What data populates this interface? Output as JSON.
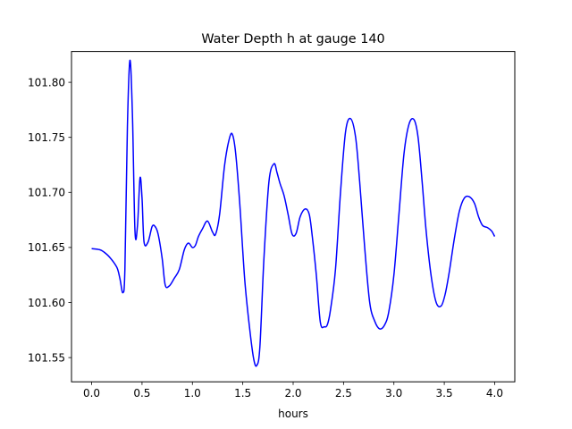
{
  "chart_data": {
    "type": "line",
    "title": "Water Depth h at gauge 140",
    "xlabel": "hours",
    "ylabel": "",
    "xlim": [
      -0.2,
      4.2
    ],
    "ylim": [
      101.528,
      101.828
    ],
    "xticks": [
      0.0,
      0.5,
      1.0,
      1.5,
      2.0,
      2.5,
      3.0,
      3.5,
      4.0
    ],
    "xtick_labels": [
      "0.0",
      "0.5",
      "1.0",
      "1.5",
      "2.0",
      "2.5",
      "3.0",
      "3.5",
      "4.0"
    ],
    "yticks": [
      101.55,
      101.6,
      101.65,
      101.7,
      101.75,
      101.8
    ],
    "ytick_labels": [
      "101.55",
      "101.60",
      "101.65",
      "101.70",
      "101.75",
      "101.80"
    ],
    "grid": false,
    "series": [
      {
        "color": "#0000ff",
        "x": [
          0.0,
          0.08,
          0.12,
          0.18,
          0.25,
          0.28,
          0.31,
          0.33,
          0.355,
          0.38,
          0.405,
          0.43,
          0.455,
          0.48,
          0.5,
          0.52,
          0.56,
          0.6,
          0.63,
          0.66,
          0.7,
          0.73,
          0.77,
          0.82,
          0.87,
          0.92,
          0.96,
          1.0,
          1.03,
          1.06,
          1.1,
          1.15,
          1.2,
          1.23,
          1.27,
          1.32,
          1.37,
          1.4,
          1.43,
          1.47,
          1.52,
          1.57,
          1.61,
          1.64,
          1.67,
          1.71,
          1.76,
          1.81,
          1.84,
          1.87,
          1.91,
          1.95,
          1.99,
          2.03,
          2.07,
          2.12,
          2.16,
          2.19,
          2.23,
          2.27,
          2.31,
          2.34,
          2.37,
          2.42,
          2.47,
          2.52,
          2.57,
          2.62,
          2.66,
          2.71,
          2.76,
          2.81,
          2.86,
          2.91,
          2.95,
          3.0,
          3.05,
          3.1,
          3.15,
          3.2,
          3.24,
          3.28,
          3.32,
          3.37,
          3.42,
          3.47,
          3.51,
          3.55,
          3.6,
          3.65,
          3.7,
          3.75,
          3.8,
          3.84,
          3.88,
          3.93,
          3.97,
          4.0
        ],
        "values": [
          101.649,
          101.648,
          101.646,
          101.641,
          101.632,
          101.622,
          101.609,
          101.63,
          101.76,
          101.82,
          101.77,
          101.665,
          101.67,
          101.713,
          101.695,
          101.655,
          101.655,
          101.669,
          101.669,
          101.662,
          101.64,
          101.616,
          101.615,
          101.622,
          101.63,
          101.648,
          101.654,
          101.65,
          101.652,
          101.66,
          101.667,
          101.674,
          101.664,
          101.662,
          101.68,
          101.725,
          101.75,
          101.752,
          101.735,
          101.69,
          101.62,
          101.575,
          101.548,
          101.543,
          101.56,
          101.64,
          101.71,
          101.726,
          101.718,
          101.708,
          101.697,
          101.68,
          101.662,
          101.663,
          101.678,
          101.685,
          101.68,
          101.66,
          101.625,
          101.582,
          101.578,
          101.58,
          101.593,
          101.63,
          101.7,
          101.755,
          101.767,
          101.75,
          101.71,
          101.65,
          101.6,
          101.583,
          101.576,
          101.58,
          101.592,
          101.625,
          101.68,
          101.735,
          101.762,
          101.766,
          101.75,
          101.71,
          101.665,
          101.624,
          101.6,
          101.597,
          101.608,
          101.628,
          101.658,
          101.683,
          101.695,
          101.696,
          101.69,
          101.678,
          101.67,
          101.668,
          101.665,
          101.66
        ]
      }
    ]
  }
}
